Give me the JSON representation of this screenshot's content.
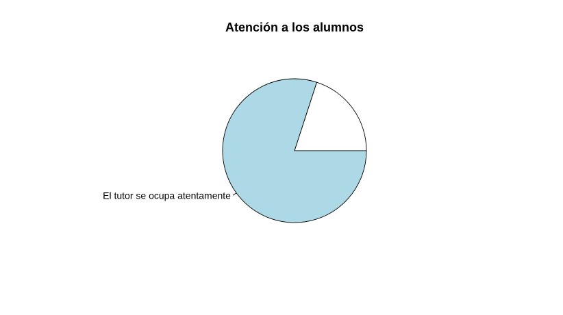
{
  "chart_data": {
    "type": "pie",
    "title": "Atención a los alumnos",
    "slices": [
      {
        "label": "",
        "value": 20,
        "color": "#ffffff"
      },
      {
        "label": "El tutor se ocupa atentamente",
        "value": 80,
        "color": "#add8e6"
      }
    ],
    "direction": "counterclockwise",
    "start": "3 o'clock"
  }
}
